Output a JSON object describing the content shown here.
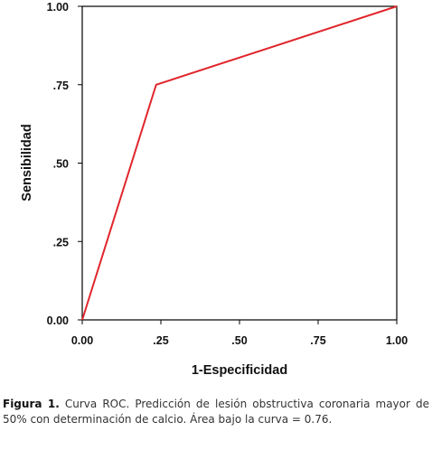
{
  "chart_data": {
    "type": "line",
    "series": [
      {
        "x": [
          0.0,
          0.235,
          1.0
        ],
        "y": [
          0.0,
          0.75,
          1.0
        ],
        "color": "#e0262b"
      }
    ],
    "xlabel": "1-Especificidad",
    "ylabel": "Sensibilidad",
    "xlim": [
      0,
      1
    ],
    "ylim": [
      0,
      1
    ],
    "xticks": [
      {
        "value": 0.0,
        "label": "0.00"
      },
      {
        "value": 0.25,
        "label": ".25"
      },
      {
        "value": 0.5,
        "label": ".50"
      },
      {
        "value": 0.75,
        "label": ".75"
      },
      {
        "value": 1.0,
        "label": "1.00"
      }
    ],
    "yticks": [
      {
        "value": 0.0,
        "label": "0.00"
      },
      {
        "value": 0.25,
        "label": ".25"
      },
      {
        "value": 0.5,
        "label": ".50"
      },
      {
        "value": 0.75,
        "label": ".75"
      },
      {
        "value": 1.0,
        "label": "1.00"
      }
    ],
    "grid": false
  },
  "caption": {
    "label": "Figura 1.",
    "text": "Curva ROC. Predicción de lesión obstructiva coronaria mayor de 50% con determinación de calcio. Área bajo la curva = 0.76."
  }
}
